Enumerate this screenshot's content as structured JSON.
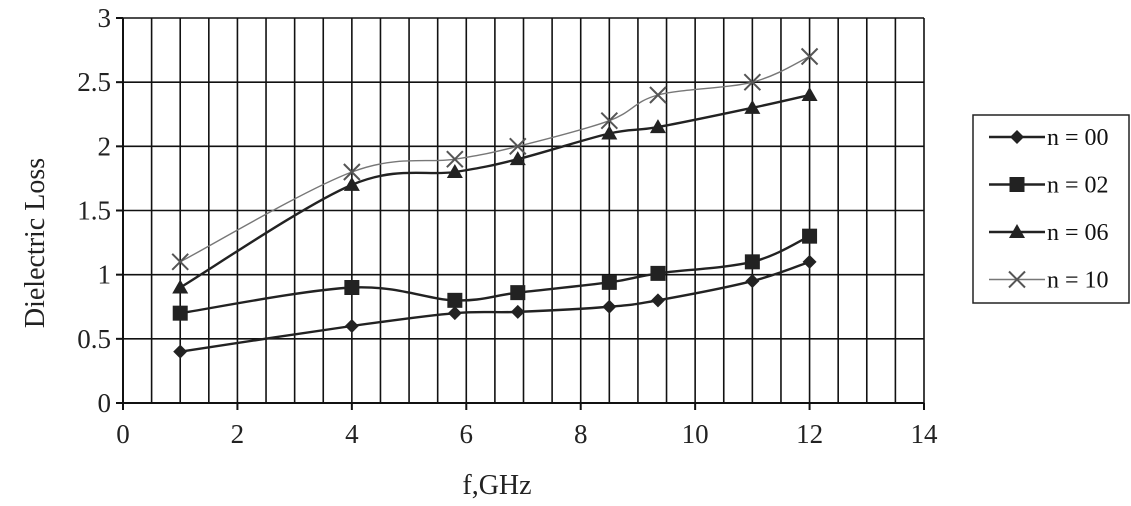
{
  "chart_data": {
    "type": "line",
    "xlabel": "f,GHz",
    "ylabel": "Dielectric Loss",
    "xlim": [
      0,
      14
    ],
    "ylim": [
      0,
      3
    ],
    "x_ticks": [
      "0",
      "2",
      "4",
      "6",
      "8",
      "10",
      "12",
      "14"
    ],
    "y_ticks": [
      "0",
      "0.5",
      "1",
      "1.5",
      "2",
      "2.5",
      "3"
    ],
    "grid": true,
    "legend_position": "right",
    "x": [
      1,
      4,
      5.8,
      6.9,
      8.5,
      9.35,
      11,
      12
    ],
    "series": [
      {
        "name": "n = 00",
        "marker": "diamond",
        "color": "#222222",
        "values": [
          0.4,
          0.6,
          0.7,
          0.71,
          0.75,
          0.8,
          0.95,
          1.1
        ]
      },
      {
        "name": "n = 02",
        "marker": "square",
        "color": "#222222",
        "values": [
          0.7,
          0.9,
          0.8,
          0.86,
          0.94,
          1.01,
          1.1,
          1.3
        ]
      },
      {
        "name": "n = 06",
        "marker": "triangle",
        "color": "#222222",
        "values": [
          0.9,
          1.7,
          1.8,
          1.9,
          2.1,
          2.15,
          2.3,
          2.4
        ]
      },
      {
        "name": "n = 10",
        "marker": "x",
        "color": "#777777",
        "values": [
          1.1,
          1.8,
          1.9,
          2.0,
          2.2,
          2.4,
          2.5,
          2.7
        ]
      }
    ]
  }
}
